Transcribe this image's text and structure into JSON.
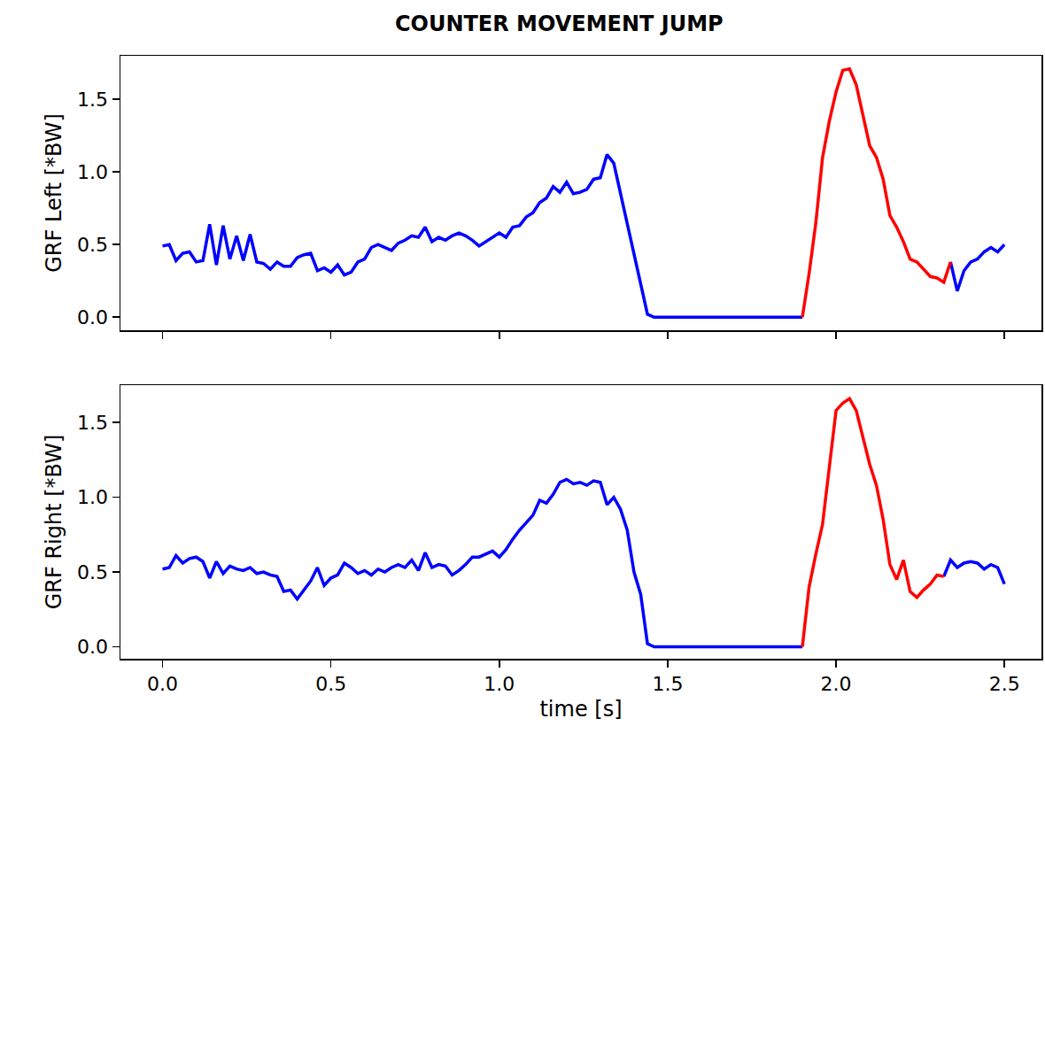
{
  "chart_data": [
    {
      "type": "line",
      "title": "COUNTER MOVEMENT JUMP",
      "y_label": "GRF Left [*BW]",
      "grid": false,
      "tick_labels": "y",
      "xlim": [
        -0.125,
        2.61
      ],
      "xticks": [
        {
          "value": 0,
          "label": "0.0"
        },
        {
          "value": 0.5,
          "label": "0.5"
        },
        {
          "value": 1,
          "label": "1.0"
        },
        {
          "value": 1.5,
          "label": "1.5"
        },
        {
          "value": 2,
          "label": "2.0"
        },
        {
          "value": 2.5,
          "label": "2.5"
        }
      ],
      "ylim": [
        -0.09,
        1.8
      ],
      "yticks": [
        {
          "value": 0,
          "label": "0.0"
        },
        {
          "value": 0.5,
          "label": "0.5"
        },
        {
          "value": 1,
          "label": "1.0"
        },
        {
          "value": 1.5,
          "label": "1.5"
        }
      ],
      "x": [
        0,
        0.02,
        0.04,
        0.06,
        0.08,
        0.1,
        0.12,
        0.14,
        0.16,
        0.18,
        0.2,
        0.22,
        0.24,
        0.26,
        0.28,
        0.3,
        0.32,
        0.34,
        0.36,
        0.38,
        0.4,
        0.42,
        0.44,
        0.46,
        0.48,
        0.5,
        0.52,
        0.54,
        0.56,
        0.58,
        0.6,
        0.62,
        0.64,
        0.66,
        0.68,
        0.7,
        0.72,
        0.74,
        0.76,
        0.78,
        0.8,
        0.82,
        0.84,
        0.86,
        0.88,
        0.9,
        0.92,
        0.94,
        0.96,
        0.98,
        1,
        1.02,
        1.04,
        1.06,
        1.08,
        1.1,
        1.12,
        1.14,
        1.16,
        1.18,
        1.2,
        1.22,
        1.24,
        1.26,
        1.28,
        1.3,
        1.32,
        1.34,
        1.36,
        1.38,
        1.4,
        1.42,
        1.44,
        1.46,
        1.48,
        1.5,
        1.52,
        1.54,
        1.56,
        1.58,
        1.6,
        1.62,
        1.64,
        1.66,
        1.68,
        1.7,
        1.72,
        1.74,
        1.76,
        1.78,
        1.8,
        1.82,
        1.84,
        1.86,
        1.88,
        1.9,
        1.92,
        1.94,
        1.96,
        1.98,
        2,
        2.02,
        2.04,
        2.06,
        2.08,
        2.1,
        2.12,
        2.14,
        2.16,
        2.18,
        2.2,
        2.22,
        2.24,
        2.26,
        2.28,
        2.3,
        2.32,
        2.34,
        2.36,
        2.38,
        2.4,
        2.42,
        2.44,
        2.46,
        2.48,
        2.5
      ],
      "series": [
        {
          "color": "#0000ff",
          "values": [
            0.49,
            0.5,
            0.39,
            0.44,
            0.45,
            0.38,
            0.39,
            0.64,
            0.36,
            0.63,
            0.4,
            0.56,
            0.39,
            0.57,
            0.38,
            0.37,
            0.33,
            0.38,
            0.35,
            0.35,
            0.41,
            0.43,
            0.44,
            0.32,
            0.34,
            0.31,
            0.36,
            0.29,
            0.31,
            0.38,
            0.4,
            0.48,
            0.5,
            0.48,
            0.46,
            0.51,
            0.53,
            0.56,
            0.55,
            0.62,
            0.52,
            0.55,
            0.53,
            0.56,
            0.58,
            0.56,
            0.53,
            0.49,
            0.52,
            0.55,
            0.58,
            0.55,
            0.62,
            0.63,
            0.69,
            0.72,
            0.79,
            0.82,
            0.9,
            0.86,
            0.93,
            0.85,
            0.86,
            0.88,
            0.95,
            0.96,
            1.12,
            1.06,
            0.85,
            0.65,
            0.45,
            0.22,
            0.02,
            0,
            0,
            0,
            0,
            0,
            0,
            0,
            0,
            0,
            0,
            0,
            0,
            0,
            0,
            0,
            0,
            0,
            0,
            0,
            0,
            0,
            0,
            0,
            null,
            null,
            null,
            null,
            null,
            null,
            null,
            null,
            null,
            null,
            null,
            null,
            null,
            null,
            null,
            null,
            null,
            null,
            null,
            null,
            null,
            0.38,
            0.18,
            0.32,
            0.38,
            0.4,
            0.45,
            0.48,
            0.45,
            0.5
          ]
        },
        {
          "color": "#ff0000",
          "values": [
            null,
            null,
            null,
            null,
            null,
            null,
            null,
            null,
            null,
            null,
            null,
            null,
            null,
            null,
            null,
            null,
            null,
            null,
            null,
            null,
            null,
            null,
            null,
            null,
            null,
            null,
            null,
            null,
            null,
            null,
            null,
            null,
            null,
            null,
            null,
            null,
            null,
            null,
            null,
            null,
            null,
            null,
            null,
            null,
            null,
            null,
            null,
            null,
            null,
            null,
            null,
            null,
            null,
            null,
            null,
            null,
            null,
            null,
            null,
            null,
            null,
            null,
            null,
            null,
            null,
            null,
            null,
            null,
            null,
            null,
            null,
            null,
            null,
            null,
            null,
            null,
            null,
            null,
            null,
            null,
            null,
            null,
            null,
            null,
            null,
            null,
            null,
            null,
            null,
            null,
            null,
            null,
            null,
            null,
            null,
            0,
            0.3,
            0.65,
            1.1,
            1.35,
            1.55,
            1.7,
            1.71,
            1.6,
            1.4,
            1.18,
            1.1,
            0.95,
            0.7,
            0.62,
            0.52,
            0.4,
            0.38,
            0.33,
            0.28,
            0.27,
            0.24,
            0.38,
            null,
            null,
            null,
            null,
            null,
            null,
            null,
            null
          ]
        }
      ]
    },
    {
      "type": "line",
      "x_label": "time [s]",
      "y_label": "GRF Right [*BW]",
      "grid": false,
      "xlim": [
        -0.125,
        2.61
      ],
      "xticks": [
        {
          "value": 0,
          "label": "0.0"
        },
        {
          "value": 0.5,
          "label": "0.5"
        },
        {
          "value": 1,
          "label": "1.0"
        },
        {
          "value": 1.5,
          "label": "1.5"
        },
        {
          "value": 2,
          "label": "2.0"
        },
        {
          "value": 2.5,
          "label": "2.5"
        }
      ],
      "ylim": [
        -0.08,
        1.75
      ],
      "yticks": [
        {
          "value": 0,
          "label": "0.0"
        },
        {
          "value": 0.5,
          "label": "0.5"
        },
        {
          "value": 1,
          "label": "1.0"
        },
        {
          "value": 1.5,
          "label": "1.5"
        }
      ],
      "x": [
        0,
        0.02,
        0.04,
        0.06,
        0.08,
        0.1,
        0.12,
        0.14,
        0.16,
        0.18,
        0.2,
        0.22,
        0.24,
        0.26,
        0.28,
        0.3,
        0.32,
        0.34,
        0.36,
        0.38,
        0.4,
        0.42,
        0.44,
        0.46,
        0.48,
        0.5,
        0.52,
        0.54,
        0.56,
        0.58,
        0.6,
        0.62,
        0.64,
        0.66,
        0.68,
        0.7,
        0.72,
        0.74,
        0.76,
        0.78,
        0.8,
        0.82,
        0.84,
        0.86,
        0.88,
        0.9,
        0.92,
        0.94,
        0.96,
        0.98,
        1,
        1.02,
        1.04,
        1.06,
        1.08,
        1.1,
        1.12,
        1.14,
        1.16,
        1.18,
        1.2,
        1.22,
        1.24,
        1.26,
        1.28,
        1.3,
        1.32,
        1.34,
        1.36,
        1.38,
        1.4,
        1.42,
        1.44,
        1.46,
        1.48,
        1.5,
        1.52,
        1.54,
        1.56,
        1.58,
        1.6,
        1.62,
        1.64,
        1.66,
        1.68,
        1.7,
        1.72,
        1.74,
        1.76,
        1.78,
        1.8,
        1.82,
        1.84,
        1.86,
        1.88,
        1.9,
        1.92,
        1.94,
        1.96,
        1.98,
        2,
        2.02,
        2.04,
        2.06,
        2.08,
        2.1,
        2.12,
        2.14,
        2.16,
        2.18,
        2.2,
        2.22,
        2.24,
        2.26,
        2.28,
        2.3,
        2.32,
        2.34,
        2.36,
        2.38,
        2.4,
        2.42,
        2.44,
        2.46,
        2.48,
        2.5
      ],
      "series": [
        {
          "color": "#0000ff",
          "values": [
            0.52,
            0.53,
            0.61,
            0.56,
            0.59,
            0.6,
            0.57,
            0.46,
            0.57,
            0.49,
            0.54,
            0.52,
            0.51,
            0.53,
            0.49,
            0.5,
            0.48,
            0.47,
            0.37,
            0.38,
            0.32,
            0.38,
            0.44,
            0.53,
            0.41,
            0.46,
            0.48,
            0.56,
            0.53,
            0.49,
            0.51,
            0.48,
            0.52,
            0.5,
            0.53,
            0.55,
            0.53,
            0.58,
            0.51,
            0.63,
            0.53,
            0.55,
            0.54,
            0.48,
            0.51,
            0.55,
            0.6,
            0.6,
            0.62,
            0.64,
            0.6,
            0.65,
            0.72,
            0.78,
            0.83,
            0.88,
            0.98,
            0.96,
            1.02,
            1.1,
            1.12,
            1.09,
            1.1,
            1.08,
            1.11,
            1.1,
            0.95,
            1.0,
            0.92,
            0.78,
            0.5,
            0.35,
            0.02,
            0,
            0,
            0,
            0,
            0,
            0,
            0,
            0,
            0,
            0,
            0,
            0,
            0,
            0,
            0,
            0,
            0,
            0,
            0,
            0,
            0,
            0,
            0,
            null,
            null,
            null,
            null,
            null,
            null,
            null,
            null,
            null,
            null,
            null,
            null,
            null,
            null,
            null,
            null,
            null,
            null,
            null,
            null,
            0.47,
            0.58,
            0.53,
            0.56,
            0.57,
            0.56,
            0.52,
            0.55,
            0.53,
            0.42
          ]
        },
        {
          "color": "#ff0000",
          "values": [
            null,
            null,
            null,
            null,
            null,
            null,
            null,
            null,
            null,
            null,
            null,
            null,
            null,
            null,
            null,
            null,
            null,
            null,
            null,
            null,
            null,
            null,
            null,
            null,
            null,
            null,
            null,
            null,
            null,
            null,
            null,
            null,
            null,
            null,
            null,
            null,
            null,
            null,
            null,
            null,
            null,
            null,
            null,
            null,
            null,
            null,
            null,
            null,
            null,
            null,
            null,
            null,
            null,
            null,
            null,
            null,
            null,
            null,
            null,
            null,
            null,
            null,
            null,
            null,
            null,
            null,
            null,
            null,
            null,
            null,
            null,
            null,
            null,
            null,
            null,
            null,
            null,
            null,
            null,
            null,
            null,
            null,
            null,
            null,
            null,
            null,
            null,
            null,
            null,
            null,
            null,
            null,
            null,
            null,
            null,
            0,
            0.4,
            0.62,
            0.82,
            1.2,
            1.58,
            1.63,
            1.66,
            1.58,
            1.4,
            1.22,
            1.08,
            0.85,
            0.55,
            0.45,
            0.58,
            0.37,
            0.33,
            0.38,
            0.42,
            0.48,
            0.47,
            null,
            null,
            null,
            null,
            null,
            null,
            null,
            null,
            null
          ]
        }
      ]
    }
  ]
}
